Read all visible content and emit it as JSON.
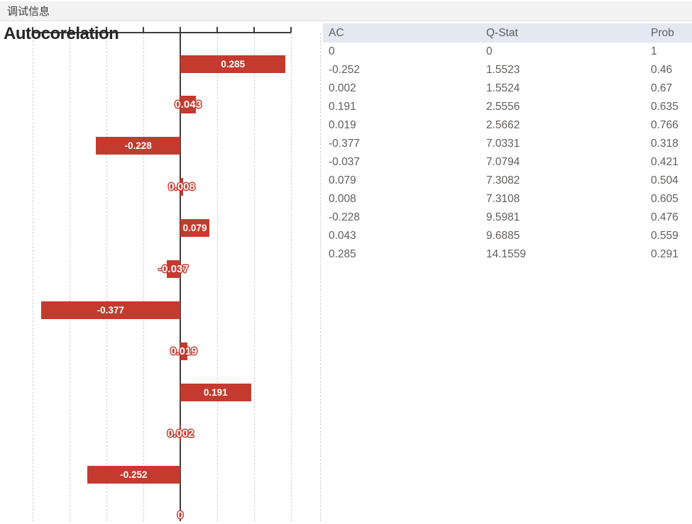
{
  "titlebar": {
    "label": "调试信息"
  },
  "chart_data": {
    "type": "bar",
    "orientation": "horizontal",
    "title": "Autocorelation",
    "values": [
      0.285,
      0.043,
      -0.228,
      0.008,
      0.079,
      -0.037,
      -0.377,
      0.019,
      0.191,
      0.002,
      -0.252,
      0
    ],
    "labels": [
      "0.285",
      "0.043",
      "-0.228",
      "0.008",
      "0.079",
      "-0.037",
      "-0.377",
      "0.019",
      "0.191",
      "0.002",
      "-0.252",
      "0"
    ],
    "xlim": [
      -0.4,
      0.38
    ],
    "xticks": [
      -0.4,
      -0.3,
      -0.2,
      -0.1,
      0,
      0.1,
      0.2,
      0.3
    ],
    "grid": true,
    "axis_position": "top",
    "bar_color": "#c43a2f"
  },
  "table": {
    "columns": [
      "AC",
      "Q-Stat",
      "Prob"
    ],
    "rows": [
      [
        "0",
        "0",
        "1"
      ],
      [
        "-0.252",
        "1.5523",
        "0.46"
      ],
      [
        "0.002",
        "1.5524",
        "0.67"
      ],
      [
        "0.191",
        "2.5556",
        "0.635"
      ],
      [
        "0.019",
        "2.5662",
        "0.766"
      ],
      [
        "-0.377",
        "7.0331",
        "0.318"
      ],
      [
        "-0.037",
        "7.0794",
        "0.421"
      ],
      [
        "0.079",
        "7.3082",
        "0.504"
      ],
      [
        "0.008",
        "7.3108",
        "0.605"
      ],
      [
        "-0.228",
        "9.5981",
        "0.476"
      ],
      [
        "0.043",
        "9.6885",
        "0.559"
      ],
      [
        "0.285",
        "14.1559",
        "0.291"
      ]
    ]
  },
  "colors": {
    "bar": "#c43a2f",
    "table_header_bg": "#e4e8f2",
    "titlebar_bg": "#f2f2f2",
    "table_text": "#605e5c"
  }
}
